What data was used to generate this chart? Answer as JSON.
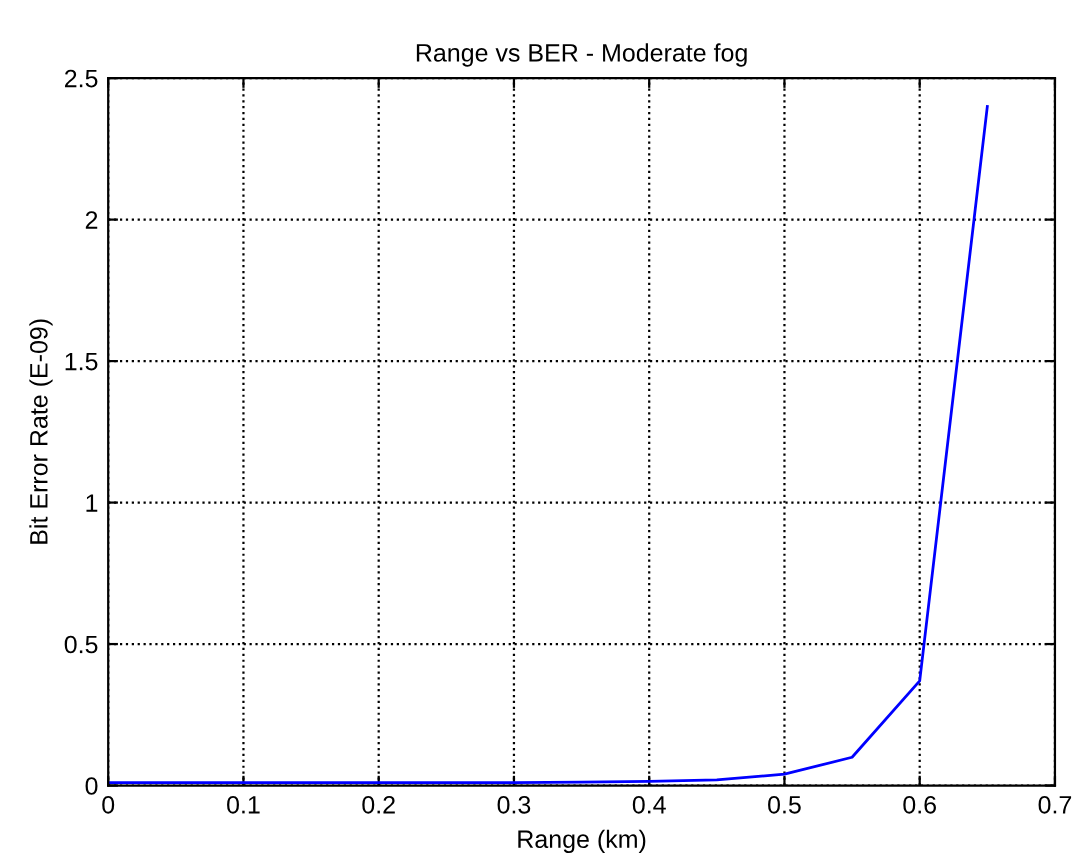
{
  "chart_data": {
    "type": "line",
    "title": "Range vs BER - Moderate fog",
    "xlabel": "Range (km)",
    "ylabel": "Bit Error Rate (E-09)",
    "x": [
      0,
      0.05,
      0.1,
      0.15,
      0.2,
      0.25,
      0.3,
      0.35,
      0.4,
      0.45,
      0.5,
      0.55,
      0.6,
      0.65
    ],
    "series": [
      {
        "color": "#0000ff",
        "values": [
          0.01,
          0.01,
          0.01,
          0.01,
          0.01,
          0.01,
          0.01,
          0.012,
          0.015,
          0.02,
          0.04,
          0.1,
          0.37,
          2.4
        ]
      }
    ],
    "xlim": [
      0,
      0.7
    ],
    "xticks": [
      0,
      0.1,
      0.2,
      0.3,
      0.4,
      0.5,
      0.6,
      0.7
    ],
    "ylim": [
      0,
      2.5
    ],
    "yticks": [
      0,
      0.5,
      1,
      1.5,
      2,
      2.5
    ],
    "grid": true,
    "line_style": "solid",
    "marker": "none"
  }
}
